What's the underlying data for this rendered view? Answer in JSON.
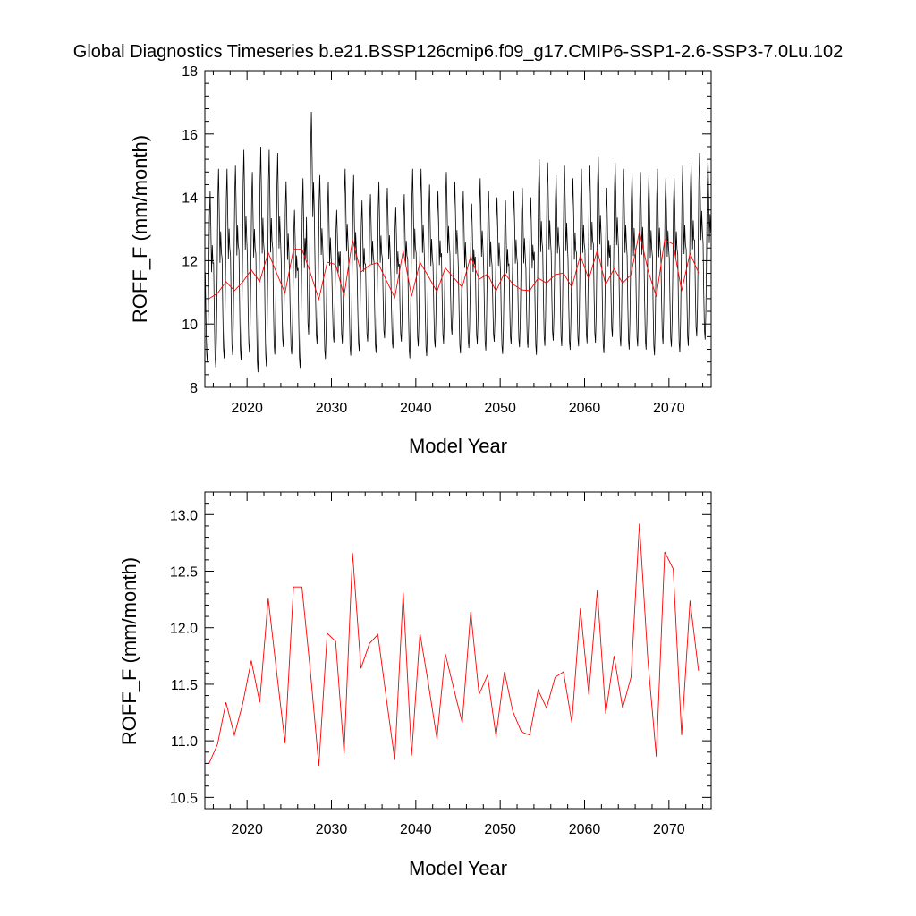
{
  "title": "Global Diagnostics Timeseries b.e21.BSSP126cmip6.f09_g17.CMIP6-SSP1-2.6-SSP3-7.0Lu.102",
  "colors": {
    "monthly": "#000000",
    "annual": "#ff0000",
    "frame": "#000000"
  },
  "chart_data": [
    {
      "type": "line",
      "xlabel": "Model Year",
      "ylabel": "ROFF_F (mm/month)",
      "xlim": [
        2015,
        2075
      ],
      "ylim": [
        8,
        18
      ],
      "xticks": [
        2020,
        2030,
        2040,
        2050,
        2060,
        2070
      ],
      "xtick_labels": [
        "2020",
        "2030",
        "2040",
        "2050",
        "2060",
        "2070"
      ],
      "yticks": [
        8,
        10,
        12,
        14,
        16,
        18
      ],
      "ytick_labels": [
        "8",
        "10",
        "12",
        "14",
        "16",
        "18"
      ],
      "monthly_peaks": [
        14.2,
        14.9,
        14.9,
        15.0,
        15.5,
        14.8,
        15.6,
        15.5,
        15.4,
        14.5,
        13.6,
        14.6,
        16.7,
        14.7,
        14.5,
        13.6,
        14.9,
        14.7,
        13.9,
        14.1,
        14.5,
        14.3,
        13.7,
        14.1,
        14.9,
        14.9,
        14.4,
        14.2,
        14.8,
        14.5,
        14.2,
        13.8,
        14.6,
        14.2,
        14.0,
        13.9,
        14.2,
        14.3,
        14.0,
        15.2,
        15.1,
        14.7,
        15.0,
        14.6,
        14.9,
        15.0,
        15.3,
        14.3,
        15.1,
        14.9,
        14.8,
        14.8,
        14.7,
        14.9,
        14.6,
        14.6,
        15.0,
        15.1,
        15.4,
        15.3
      ],
      "monthly_troughs": [
        8.5,
        8.3,
        8.6,
        8.7,
        8.5,
        8.8,
        8.1,
        8.3,
        8.7,
        9.0,
        8.8,
        8.3,
        9.3,
        9.1,
        8.6,
        9.2,
        9.1,
        8.7,
        8.9,
        9.2,
        8.8,
        9.3,
        9.0,
        9.2,
        8.6,
        9.0,
        8.7,
        9.0,
        9.1,
        9.4,
        8.8,
        9.0,
        9.1,
        8.9,
        9.2,
        8.8,
        9.1,
        9.0,
        9.0,
        8.7,
        9.0,
        9.2,
        9.0,
        8.9,
        9.0,
        9.1,
        9.1,
        8.8,
        9.3,
        9.0,
        8.9,
        9.0,
        8.9,
        8.7,
        9.1,
        9.0,
        8.8,
        9.0,
        9.3,
        9.2
      ],
      "series": [
        {
          "values_ref": "annual_mean"
        }
      ]
    },
    {
      "type": "line",
      "xlabel": "Model Year",
      "ylabel": "ROFF_F (mm/month)",
      "xlim": [
        2015,
        2075
      ],
      "ylim": [
        10.4,
        13.2
      ],
      "xticks": [
        2020,
        2030,
        2040,
        2050,
        2060,
        2070
      ],
      "xtick_labels": [
        "2020",
        "2030",
        "2040",
        "2050",
        "2060",
        "2070"
      ],
      "yticks": [
        10.5,
        11.0,
        11.5,
        12.0,
        12.5,
        13.0
      ],
      "ytick_labels": [
        "10.5",
        "11.0",
        "11.5",
        "12.0",
        "12.5",
        "13.0"
      ]
    }
  ],
  "annual_mean": {
    "x": [
      2015.5,
      2016.5,
      2017.5,
      2018.5,
      2019.5,
      2020.5,
      2021.5,
      2022.5,
      2023.5,
      2024.5,
      2025.5,
      2026.5,
      2027.5,
      2028.5,
      2029.5,
      2030.5,
      2031.5,
      2032.5,
      2033.5,
      2034.5,
      2035.5,
      2036.5,
      2037.5,
      2038.5,
      2039.5,
      2040.5,
      2041.5,
      2042.5,
      2043.5,
      2044.5,
      2045.5,
      2046.5,
      2047.5,
      2048.5,
      2049.5,
      2050.5,
      2051.5,
      2052.5,
      2053.5,
      2054.5,
      2055.5,
      2056.5,
      2057.5,
      2058.5,
      2059.5,
      2060.5,
      2061.5,
      2062.5,
      2063.5,
      2064.5,
      2065.5,
      2066.5,
      2067.5,
      2068.5,
      2069.5,
      2070.5,
      2071.5,
      2072.5,
      2073.5
    ],
    "y": [
      10.8,
      10.97,
      11.34,
      11.05,
      11.33,
      11.71,
      11.34,
      12.26,
      11.61,
      10.98,
      12.36,
      12.36,
      11.62,
      10.78,
      11.95,
      11.88,
      10.89,
      12.66,
      11.64,
      11.86,
      11.94,
      11.38,
      10.83,
      12.31,
      10.87,
      11.95,
      11.5,
      11.02,
      11.77,
      11.46,
      11.16,
      12.14,
      11.41,
      11.58,
      11.04,
      11.61,
      11.26,
      11.08,
      11.05,
      11.45,
      11.29,
      11.56,
      11.61,
      11.16,
      12.17,
      11.41,
      12.33,
      11.24,
      11.75,
      11.29,
      11.56,
      12.92,
      11.71,
      10.86,
      12.67,
      12.52,
      11.05,
      12.24,
      11.62
    ]
  }
}
